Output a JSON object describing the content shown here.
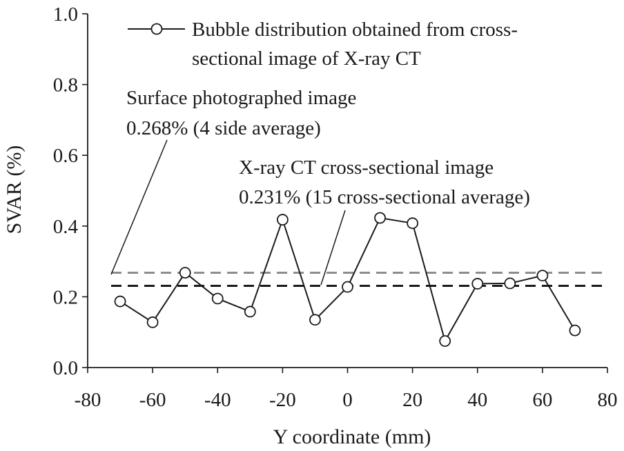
{
  "chart_data": {
    "type": "line",
    "xlabel": "Y coordinate (mm)",
    "ylabel": "SVAR (%)",
    "xlim": [
      -80,
      80
    ],
    "ylim": [
      0,
      1.0
    ],
    "x_ticks": [
      -80,
      -60,
      -40,
      -20,
      0,
      20,
      40,
      60,
      80
    ],
    "x_tick_labels": [
      "-80",
      "-60",
      "-40",
      "-20",
      "0",
      "20",
      "40",
      "60",
      "80"
    ],
    "y_ticks": [
      0,
      0.2,
      0.4,
      0.6,
      0.8,
      1.0
    ],
    "y_tick_labels": [
      "0.0",
      "0.2",
      "0.4",
      "0.6",
      "0.8",
      "1.0"
    ],
    "grid": false,
    "legend_position": "top-right",
    "series": [
      {
        "name": "Bubble distribution obtained from cross-sectional image of X-ray CT",
        "legend_lines": [
          "Bubble distribution obtained from cross-",
          "sectional image of X-ray CT"
        ],
        "x": [
          -70,
          -60,
          -50,
          -40,
          -30,
          -20,
          -10,
          0,
          10,
          20,
          30,
          40,
          50,
          60,
          70
        ],
        "y": [
          0.187,
          0.128,
          0.268,
          0.195,
          0.158,
          0.418,
          0.135,
          0.228,
          0.423,
          0.408,
          0.075,
          0.237,
          0.238,
          0.26,
          0.105
        ],
        "color": "#1a1a1a",
        "marker": "open-circle"
      }
    ],
    "reference_lines": [
      {
        "y": 0.268,
        "color": "#8c8c8c",
        "style": "dashed",
        "annotation_lines": [
          "Surface photographed image",
          "0.268% (4 side average)"
        ]
      },
      {
        "y": 0.231,
        "color": "#1a1a1a",
        "style": "dashed",
        "annotation_lines": [
          "X-ray CT cross-sectional image",
          "0.231% (15 cross-sectional average)"
        ]
      }
    ]
  }
}
